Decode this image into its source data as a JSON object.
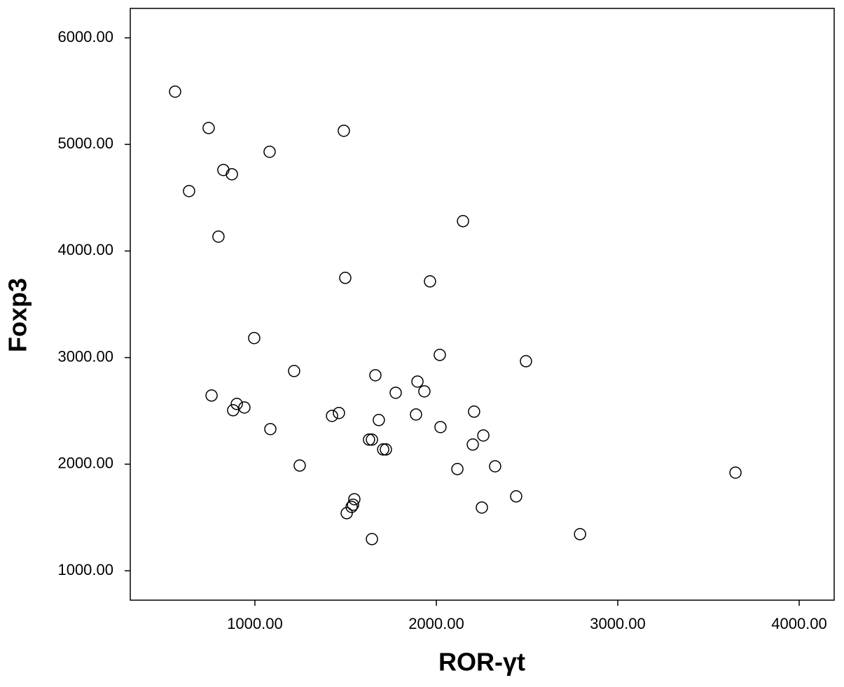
{
  "chart_data": {
    "type": "scatter",
    "x_label": "ROR-γt",
    "y_label": "Foxp3",
    "x": [
      560,
      745,
      1081,
      1490,
      826,
      873,
      637,
      799,
      2147,
      1498,
      1965,
      996,
      2019,
      2494,
      1216,
      1664,
      761,
      1896,
      1934,
      1776,
      900,
      942,
      880,
      1463,
      1425,
      2208,
      1888,
      1683,
      2023,
      1085,
      2259,
      1629,
      1645,
      2201,
      1707,
      1722,
      1247,
      2116,
      2324,
      3649,
      2440,
      1548,
      1541,
      1533,
      1506,
      2251,
      1645,
      2792
    ],
    "values": [
      5495,
      5154,
      4931,
      5128,
      4760,
      4720,
      4562,
      4135,
      4280,
      3748,
      3715,
      3183,
      3025,
      2966,
      2874,
      2834,
      2644,
      2775,
      2683,
      2670,
      2565,
      2532,
      2506,
      2480,
      2453,
      2493,
      2466,
      2414,
      2348,
      2329,
      2269,
      2230,
      2230,
      2184,
      2138,
      2138,
      1987,
      1954,
      1980,
      1921,
      1698,
      1671,
      1619,
      1599,
      1540,
      1593,
      1297,
      1343
    ],
    "color": "#000000",
    "xlim": [
      313,
      4193
    ],
    "ylim": [
      724,
      6276
    ],
    "xticks": [
      {
        "value": 1000,
        "label": "1000.00"
      },
      {
        "value": 2000,
        "label": "2000.00"
      },
      {
        "value": 3000,
        "label": "3000.00"
      },
      {
        "value": 4000,
        "label": "4000.00"
      }
    ],
    "yticks": [
      {
        "value": 1000,
        "label": "1000.00"
      },
      {
        "value": 2000,
        "label": "2000.00"
      },
      {
        "value": 3000,
        "label": "3000.00"
      },
      {
        "value": 4000,
        "label": "4000.00"
      },
      {
        "value": 5000,
        "label": "5000.00"
      },
      {
        "value": 6000,
        "label": "6000.00"
      }
    ],
    "grid": false
  }
}
